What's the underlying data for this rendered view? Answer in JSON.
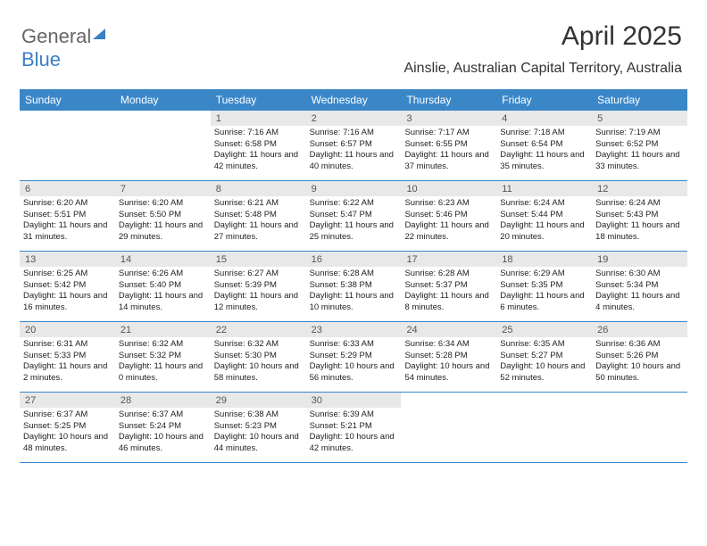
{
  "logo": {
    "part1": "General",
    "part2": "Blue"
  },
  "title": "April 2025",
  "location": "Ainslie, Australian Capital Territory, Australia",
  "colors": {
    "header_bg": "#3a87c8",
    "header_text": "#ffffff",
    "daynum_bg": "#e8e8e8",
    "daynum_text": "#555555",
    "body_text": "#222222",
    "border": "#3a87c8",
    "page_bg": "#ffffff"
  },
  "dayHeaders": [
    "Sunday",
    "Monday",
    "Tuesday",
    "Wednesday",
    "Thursday",
    "Friday",
    "Saturday"
  ],
  "weeks": [
    [
      {
        "empty": true
      },
      {
        "empty": true
      },
      {
        "num": "1",
        "sunrise": "Sunrise: 7:16 AM",
        "sunset": "Sunset: 6:58 PM",
        "daylight": "Daylight: 11 hours and 42 minutes."
      },
      {
        "num": "2",
        "sunrise": "Sunrise: 7:16 AM",
        "sunset": "Sunset: 6:57 PM",
        "daylight": "Daylight: 11 hours and 40 minutes."
      },
      {
        "num": "3",
        "sunrise": "Sunrise: 7:17 AM",
        "sunset": "Sunset: 6:55 PM",
        "daylight": "Daylight: 11 hours and 37 minutes."
      },
      {
        "num": "4",
        "sunrise": "Sunrise: 7:18 AM",
        "sunset": "Sunset: 6:54 PM",
        "daylight": "Daylight: 11 hours and 35 minutes."
      },
      {
        "num": "5",
        "sunrise": "Sunrise: 7:19 AM",
        "sunset": "Sunset: 6:52 PM",
        "daylight": "Daylight: 11 hours and 33 minutes."
      }
    ],
    [
      {
        "num": "6",
        "sunrise": "Sunrise: 6:20 AM",
        "sunset": "Sunset: 5:51 PM",
        "daylight": "Daylight: 11 hours and 31 minutes."
      },
      {
        "num": "7",
        "sunrise": "Sunrise: 6:20 AM",
        "sunset": "Sunset: 5:50 PM",
        "daylight": "Daylight: 11 hours and 29 minutes."
      },
      {
        "num": "8",
        "sunrise": "Sunrise: 6:21 AM",
        "sunset": "Sunset: 5:48 PM",
        "daylight": "Daylight: 11 hours and 27 minutes."
      },
      {
        "num": "9",
        "sunrise": "Sunrise: 6:22 AM",
        "sunset": "Sunset: 5:47 PM",
        "daylight": "Daylight: 11 hours and 25 minutes."
      },
      {
        "num": "10",
        "sunrise": "Sunrise: 6:23 AM",
        "sunset": "Sunset: 5:46 PM",
        "daylight": "Daylight: 11 hours and 22 minutes."
      },
      {
        "num": "11",
        "sunrise": "Sunrise: 6:24 AM",
        "sunset": "Sunset: 5:44 PM",
        "daylight": "Daylight: 11 hours and 20 minutes."
      },
      {
        "num": "12",
        "sunrise": "Sunrise: 6:24 AM",
        "sunset": "Sunset: 5:43 PM",
        "daylight": "Daylight: 11 hours and 18 minutes."
      }
    ],
    [
      {
        "num": "13",
        "sunrise": "Sunrise: 6:25 AM",
        "sunset": "Sunset: 5:42 PM",
        "daylight": "Daylight: 11 hours and 16 minutes."
      },
      {
        "num": "14",
        "sunrise": "Sunrise: 6:26 AM",
        "sunset": "Sunset: 5:40 PM",
        "daylight": "Daylight: 11 hours and 14 minutes."
      },
      {
        "num": "15",
        "sunrise": "Sunrise: 6:27 AM",
        "sunset": "Sunset: 5:39 PM",
        "daylight": "Daylight: 11 hours and 12 minutes."
      },
      {
        "num": "16",
        "sunrise": "Sunrise: 6:28 AM",
        "sunset": "Sunset: 5:38 PM",
        "daylight": "Daylight: 11 hours and 10 minutes."
      },
      {
        "num": "17",
        "sunrise": "Sunrise: 6:28 AM",
        "sunset": "Sunset: 5:37 PM",
        "daylight": "Daylight: 11 hours and 8 minutes."
      },
      {
        "num": "18",
        "sunrise": "Sunrise: 6:29 AM",
        "sunset": "Sunset: 5:35 PM",
        "daylight": "Daylight: 11 hours and 6 minutes."
      },
      {
        "num": "19",
        "sunrise": "Sunrise: 6:30 AM",
        "sunset": "Sunset: 5:34 PM",
        "daylight": "Daylight: 11 hours and 4 minutes."
      }
    ],
    [
      {
        "num": "20",
        "sunrise": "Sunrise: 6:31 AM",
        "sunset": "Sunset: 5:33 PM",
        "daylight": "Daylight: 11 hours and 2 minutes."
      },
      {
        "num": "21",
        "sunrise": "Sunrise: 6:32 AM",
        "sunset": "Sunset: 5:32 PM",
        "daylight": "Daylight: 11 hours and 0 minutes."
      },
      {
        "num": "22",
        "sunrise": "Sunrise: 6:32 AM",
        "sunset": "Sunset: 5:30 PM",
        "daylight": "Daylight: 10 hours and 58 minutes."
      },
      {
        "num": "23",
        "sunrise": "Sunrise: 6:33 AM",
        "sunset": "Sunset: 5:29 PM",
        "daylight": "Daylight: 10 hours and 56 minutes."
      },
      {
        "num": "24",
        "sunrise": "Sunrise: 6:34 AM",
        "sunset": "Sunset: 5:28 PM",
        "daylight": "Daylight: 10 hours and 54 minutes."
      },
      {
        "num": "25",
        "sunrise": "Sunrise: 6:35 AM",
        "sunset": "Sunset: 5:27 PM",
        "daylight": "Daylight: 10 hours and 52 minutes."
      },
      {
        "num": "26",
        "sunrise": "Sunrise: 6:36 AM",
        "sunset": "Sunset: 5:26 PM",
        "daylight": "Daylight: 10 hours and 50 minutes."
      }
    ],
    [
      {
        "num": "27",
        "sunrise": "Sunrise: 6:37 AM",
        "sunset": "Sunset: 5:25 PM",
        "daylight": "Daylight: 10 hours and 48 minutes."
      },
      {
        "num": "28",
        "sunrise": "Sunrise: 6:37 AM",
        "sunset": "Sunset: 5:24 PM",
        "daylight": "Daylight: 10 hours and 46 minutes."
      },
      {
        "num": "29",
        "sunrise": "Sunrise: 6:38 AM",
        "sunset": "Sunset: 5:23 PM",
        "daylight": "Daylight: 10 hours and 44 minutes."
      },
      {
        "num": "30",
        "sunrise": "Sunrise: 6:39 AM",
        "sunset": "Sunset: 5:21 PM",
        "daylight": "Daylight: 10 hours and 42 minutes."
      },
      {
        "empty": true
      },
      {
        "empty": true
      },
      {
        "empty": true
      }
    ]
  ]
}
